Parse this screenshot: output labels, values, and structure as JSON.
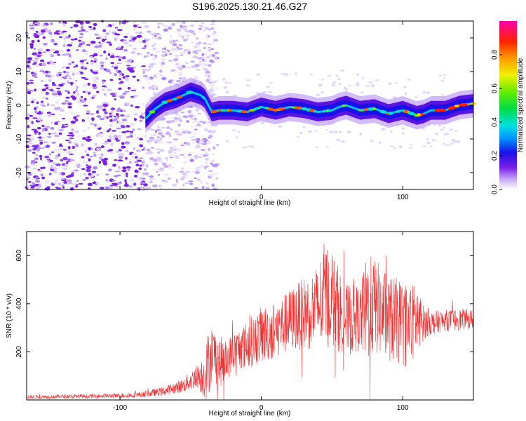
{
  "title": "S196.2025.130.21.46.G27",
  "chart_data": [
    {
      "type": "heatmap",
      "xlabel": "Height of straight line (km)",
      "ylabel": "Frequency (Hz)",
      "xlim": [
        -166,
        150
      ],
      "ylim": [
        -25,
        25
      ],
      "xticks": [
        -100,
        0,
        100
      ],
      "xtick_labels": [
        "-100",
        "0",
        "100"
      ],
      "yticks": [
        -20,
        -10,
        0,
        10,
        20
      ],
      "ytick_labels": [
        "-20",
        "-10",
        "0",
        "10",
        "20"
      ],
      "ridge": {
        "x": [
          -82,
          -75,
          -68,
          -60,
          -50,
          -43,
          -40,
          -35,
          -30,
          -20,
          -10,
          0,
          10,
          20,
          30,
          40,
          50,
          55,
          60,
          70,
          80,
          90,
          100,
          110,
          115,
          120,
          130,
          140,
          150
        ],
        "y": [
          -4,
          -1,
          1,
          2,
          4,
          3,
          2,
          -2,
          -1.5,
          -1.5,
          -2,
          -0.5,
          -1.5,
          -0.5,
          -1,
          -2,
          -1.5,
          -0.5,
          0,
          -1.5,
          -1,
          -2.5,
          -1.5,
          -3,
          -2.5,
          -1.5,
          -1.5,
          0,
          0.5
        ]
      },
      "colorbar": {
        "label": "Normalized spectral amplitude",
        "range": [
          0,
          1
        ],
        "ticks": [
          0.0,
          0.2,
          0.4,
          0.6,
          0.8
        ],
        "tick_labels": [
          "0.0",
          "0.2",
          "0.4",
          "0.6",
          "0.8"
        ]
      },
      "grid": false
    },
    {
      "type": "line",
      "xlabel": "Height of straight line (km)",
      "ylabel": "SNR (10 * v/v)",
      "xlim": [
        -166,
        150
      ],
      "ylim": [
        0,
        700
      ],
      "xticks": [
        -100,
        0,
        100
      ],
      "xtick_labels": [
        "-100",
        "0",
        "100"
      ],
      "yticks": [
        200,
        400,
        600
      ],
      "ytick_labels": [
        "200",
        "400",
        "600"
      ],
      "series": [
        {
          "color": "#ee3333",
          "envelope": {
            "x": [
              -166,
              -130,
              -100,
              -85,
              -70,
              -55,
              -45,
              -40,
              -38,
              -35,
              -30,
              -25,
              -20,
              -10,
              0,
              10,
              20,
              30,
              40,
              45,
              50,
              60,
              70,
              75,
              80,
              90,
              100,
              105,
              110,
              115,
              120,
              130,
              140,
              150
            ],
            "mean": [
              12,
              15,
              18,
              22,
              35,
              60,
              100,
              100,
              140,
              200,
              160,
              160,
              200,
              230,
              270,
              290,
              330,
              360,
              380,
              440,
              420,
              330,
              340,
              380,
              390,
              340,
              320,
              300,
              340,
              320,
              320,
              330,
              335,
              335
            ],
            "spread": [
              8,
              8,
              10,
              12,
              18,
              30,
              50,
              100,
              140,
              120,
              110,
              90,
              80,
              100,
              120,
              120,
              130,
              150,
              180,
              230,
              200,
              150,
              140,
              230,
              200,
              180,
              180,
              180,
              150,
              70,
              50,
              45,
              45,
              40
            ]
          }
        }
      ],
      "grid": false
    }
  ]
}
